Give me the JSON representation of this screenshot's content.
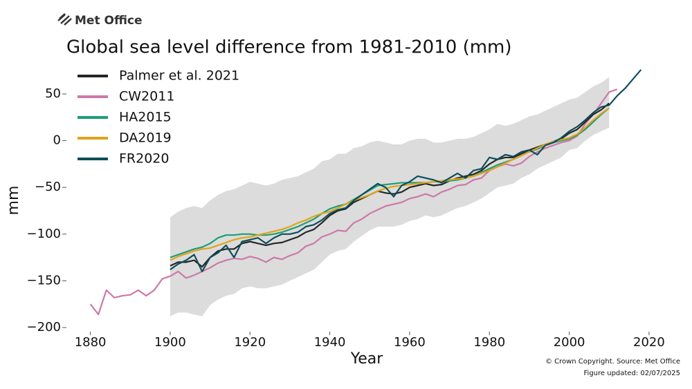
{
  "logo": "Met Office",
  "chart_data": {
    "type": "line",
    "title": "Global sea level difference from 1981-2010 (mm)",
    "xlabel": "Year",
    "ylabel": "mm",
    "source": "© Crown Copyright. Source: Met Office",
    "updated": "Figure updated: 02/07/2025",
    "x": [
      1880,
      1882,
      1884,
      1886,
      1888,
      1890,
      1892,
      1894,
      1896,
      1898,
      1900,
      1902,
      1904,
      1906,
      1908,
      1910,
      1912,
      1914,
      1916,
      1918,
      1920,
      1922,
      1924,
      1926,
      1928,
      1930,
      1932,
      1934,
      1936,
      1938,
      1940,
      1942,
      1944,
      1946,
      1948,
      1950,
      1952,
      1954,
      1956,
      1958,
      1960,
      1962,
      1964,
      1966,
      1968,
      1970,
      1972,
      1974,
      1976,
      1978,
      1980,
      1982,
      1984,
      1986,
      1988,
      1990,
      1992,
      1994,
      1996,
      1998,
      2000,
      2002,
      2004,
      2006,
      2008,
      2010,
      2012,
      2014,
      2016,
      2018
    ],
    "band": {
      "color": "#dcdcdc",
      "upper": [
        null,
        null,
        null,
        null,
        null,
        null,
        null,
        null,
        null,
        null,
        -82,
        -76,
        -72,
        -70,
        -72,
        -64,
        -58,
        -54,
        -52,
        -48,
        -44,
        -46,
        -48,
        -46,
        -42,
        -40,
        -38,
        -34,
        -30,
        -22,
        -20,
        -14,
        -14,
        -8,
        -6,
        -2,
        0,
        -2,
        -4,
        -4,
        0,
        2,
        2,
        -2,
        -2,
        0,
        2,
        2,
        4,
        8,
        12,
        18,
        16,
        18,
        22,
        26,
        28,
        32,
        36,
        40,
        44,
        46,
        52,
        58,
        62,
        68,
        null,
        null,
        null,
        null
      ],
      "lower": [
        null,
        null,
        null,
        null,
        null,
        null,
        null,
        null,
        null,
        null,
        -188,
        -184,
        -184,
        -186,
        -188,
        -176,
        -170,
        -166,
        -164,
        -158,
        -156,
        -158,
        -158,
        -156,
        -154,
        -150,
        -146,
        -142,
        -138,
        -130,
        -122,
        -118,
        -116,
        -108,
        -102,
        -96,
        -92,
        -92,
        -92,
        -90,
        -86,
        -84,
        -80,
        -82,
        -80,
        -76,
        -72,
        -70,
        -66,
        -62,
        -56,
        -50,
        -48,
        -46,
        -40,
        -36,
        -30,
        -26,
        -22,
        -18,
        -10,
        -8,
        0,
        6,
        10,
        14,
        null,
        null,
        null,
        null
      ]
    },
    "series": [
      {
        "name": "Palmer et al. 2021",
        "color": "#262626",
        "values": [
          null,
          null,
          null,
          null,
          null,
          null,
          null,
          null,
          null,
          null,
          -134,
          -130,
          -130,
          -128,
          -135,
          -125,
          -118,
          -116,
          -116,
          -110,
          -108,
          -110,
          -112,
          -110,
          -109,
          -106,
          -103,
          -98,
          -95,
          -88,
          -80,
          -75,
          -73,
          -66,
          -62,
          -58,
          -54,
          -56,
          -57,
          -55,
          -50,
          -48,
          -46,
          -48,
          -47,
          -43,
          -40,
          -38,
          -36,
          -32,
          -25,
          -20,
          -18,
          -18,
          -14,
          -10,
          -7,
          -4,
          -1,
          2,
          8,
          12,
          20,
          28,
          33,
          40,
          null,
          null,
          null,
          null
        ]
      },
      {
        "name": "CW2011",
        "color": "#cc79a7",
        "values": [
          -175,
          -186,
          -160,
          -168,
          -166,
          -165,
          -160,
          -166,
          -160,
          -148,
          -145,
          -140,
          -147,
          -144,
          -140,
          -136,
          -131,
          -128,
          -126,
          -127,
          -124,
          -126,
          -130,
          -125,
          -127,
          -123,
          -120,
          -113,
          -110,
          -103,
          -100,
          -96,
          -97,
          -88,
          -84,
          -78,
          -74,
          -70,
          -68,
          -66,
          -62,
          -60,
          -57,
          -60,
          -55,
          -52,
          -48,
          -47,
          -42,
          -40,
          -32,
          -28,
          -25,
          -27,
          -24,
          -17,
          -12,
          -8,
          -5,
          -2,
          0,
          5,
          18,
          28,
          40,
          52,
          55,
          null,
          null,
          null
        ]
      },
      {
        "name": "HA2015",
        "color": "#1b9e77",
        "values": [
          null,
          null,
          null,
          null,
          null,
          null,
          null,
          null,
          null,
          null,
          -125,
          -122,
          -119,
          -116,
          -114,
          -110,
          -104,
          -101,
          -101,
          -100,
          -100,
          -101,
          -101,
          -100,
          -98,
          -95,
          -92,
          -88,
          -84,
          -78,
          -73,
          -70,
          -68,
          -63,
          -58,
          -53,
          -48,
          -47,
          -46,
          -45,
          -45,
          -45,
          -45,
          -44,
          -44,
          -43,
          -42,
          -40,
          -38,
          -34,
          -30,
          -26,
          -23,
          -20,
          -16,
          -12,
          -9,
          -5,
          -2,
          0,
          2,
          6,
          12,
          20,
          28,
          35,
          null,
          null,
          null,
          null
        ]
      },
      {
        "name": "DA2019",
        "color": "#e0a31a",
        "values": [
          null,
          null,
          null,
          null,
          null,
          null,
          null,
          null,
          null,
          null,
          -128,
          -124,
          -121,
          -118,
          -116,
          -115,
          -112,
          -109,
          -106,
          -104,
          -103,
          -101,
          -99,
          -97,
          -95,
          -92,
          -88,
          -85,
          -81,
          -78,
          -76,
          -72,
          -68,
          -64,
          -61,
          -58,
          -54,
          -51,
          -49,
          -48,
          -47,
          -46,
          -45,
          -44,
          -43,
          -42,
          -41,
          -40,
          -38,
          -35,
          -32,
          -28,
          -24,
          -20,
          -16,
          -12,
          -8,
          -4,
          -1,
          1,
          3,
          7,
          14,
          22,
          29,
          35,
          null,
          null,
          null,
          null
        ]
      },
      {
        "name": "FR2020",
        "color": "#0c4d5a",
        "values": [
          null,
          null,
          null,
          null,
          null,
          null,
          null,
          null,
          null,
          null,
          -138,
          -132,
          -128,
          -122,
          -140,
          -125,
          -120,
          -112,
          -125,
          -108,
          -106,
          -104,
          -110,
          -104,
          -100,
          -100,
          -98,
          -92,
          -90,
          -85,
          -78,
          -74,
          -72,
          -64,
          -58,
          -52,
          -46,
          -50,
          -60,
          -48,
          -44,
          -38,
          -40,
          -42,
          -45,
          -40,
          -35,
          -40,
          -32,
          -30,
          -18,
          -20,
          -15,
          -17,
          -12,
          -10,
          -15,
          -5,
          -2,
          3,
          10,
          15,
          22,
          30,
          36,
          38,
          48,
          56,
          66,
          76
        ]
      }
    ],
    "xlim": [
      1874,
      2024
    ],
    "ylim": [
      -205,
      80
    ],
    "xticks": [
      1880,
      1900,
      1920,
      1940,
      1960,
      1980,
      2000,
      2020
    ],
    "yticks": [
      {
        "value": -200,
        "label": "−200"
      },
      {
        "value": -150,
        "label": "−150"
      },
      {
        "value": -100,
        "label": "−100"
      },
      {
        "value": -50,
        "label": "−50"
      },
      0,
      50
    ],
    "legend": "upper left"
  }
}
